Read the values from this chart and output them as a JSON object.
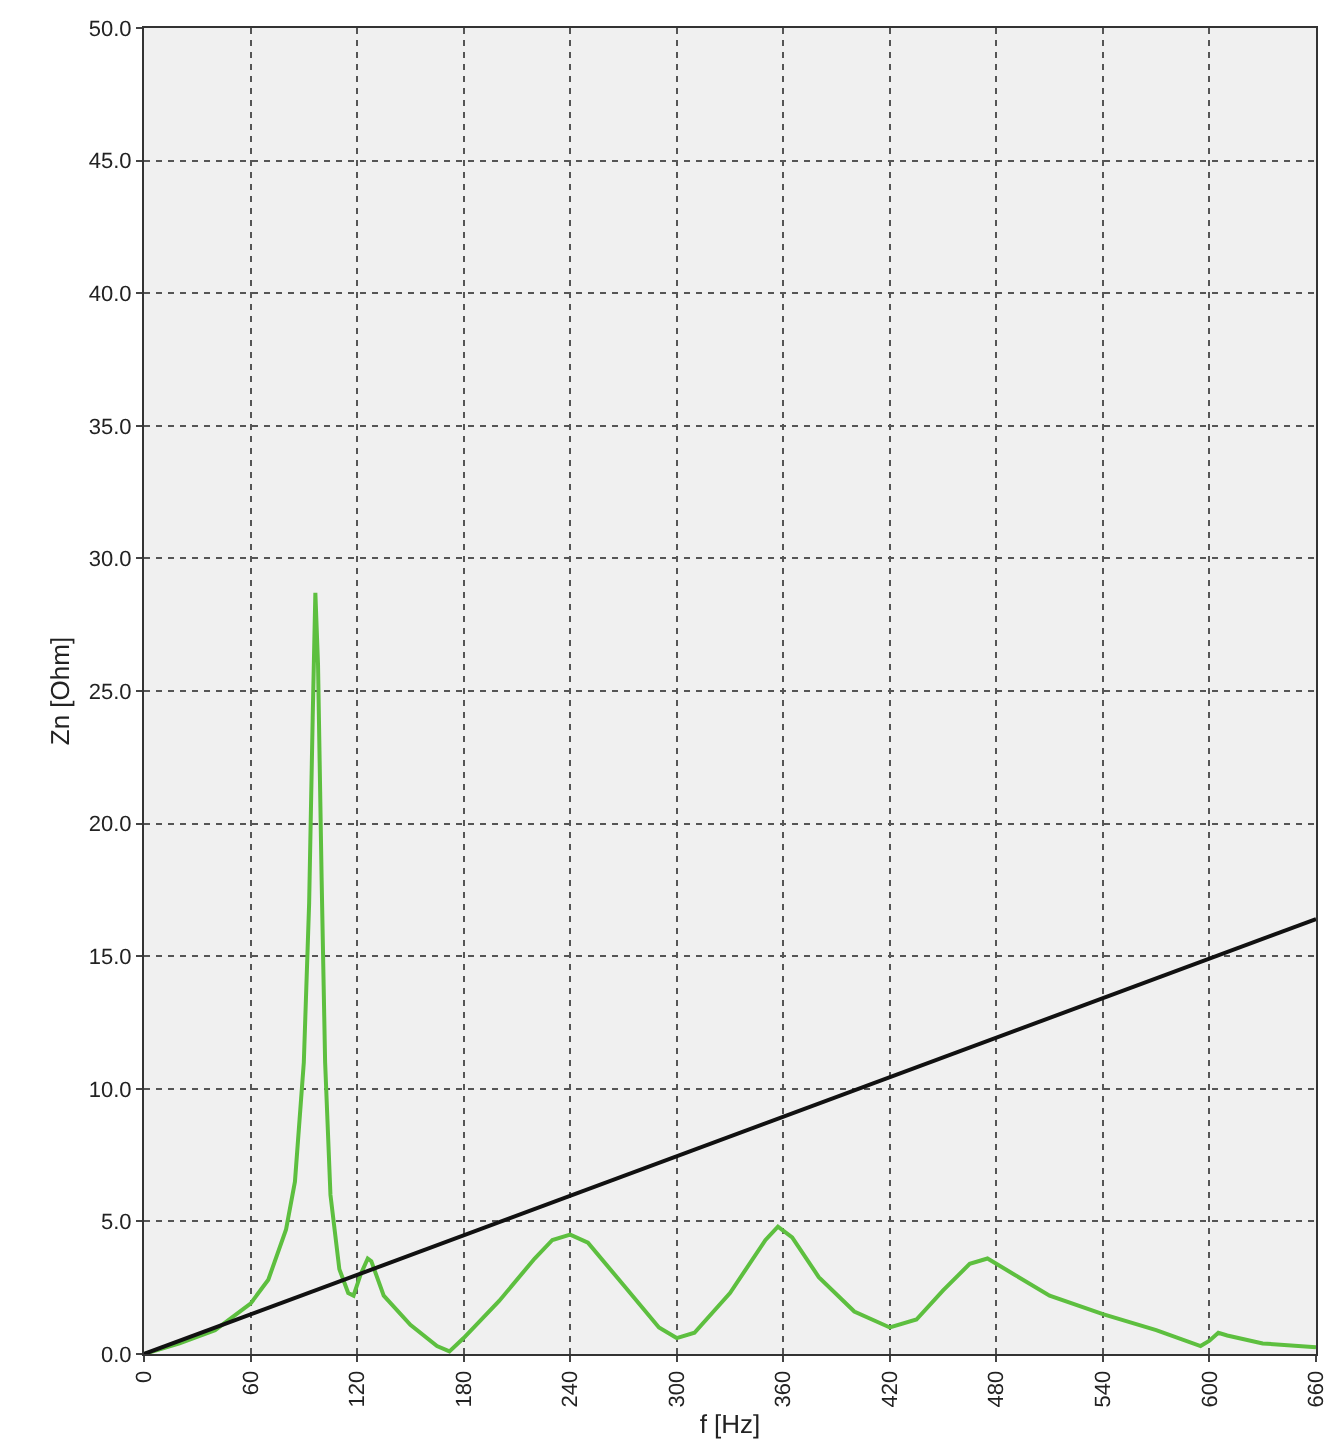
{
  "chart_data": {
    "type": "line",
    "xlabel": "f [Hz]",
    "ylabel": "Zn [Ohm]",
    "xlim": [
      0,
      660
    ],
    "xticks": [
      0,
      60,
      120,
      180,
      240,
      300,
      360,
      420,
      480,
      540,
      600,
      660
    ],
    "ylim": [
      0,
      50
    ],
    "yticks": [
      {
        "value": 0,
        "label": "0.0"
      },
      {
        "value": 5,
        "label": "5.0"
      },
      {
        "value": 10,
        "label": "10.0"
      },
      {
        "value": 15,
        "label": "15.0"
      },
      {
        "value": 20,
        "label": "20.0"
      },
      {
        "value": 25,
        "label": "25.0"
      },
      {
        "value": 30,
        "label": "30.0"
      },
      {
        "value": 35,
        "label": "35.0"
      },
      {
        "value": 40,
        "label": "40.0"
      },
      {
        "value": 45,
        "label": "45.0"
      },
      {
        "value": 50,
        "label": "50.0"
      }
    ],
    "grid": true,
    "marker": "none",
    "line_style": "solid",
    "series": [
      {
        "color": "#5dbf3f",
        "x": [
          0,
          20,
          40,
          60,
          70,
          80,
          85,
          90,
          93,
          95,
          96.5,
          98,
          100,
          102,
          105,
          110,
          115,
          118,
          122,
          126,
          128,
          135,
          150,
          165,
          172,
          180,
          200,
          220,
          230,
          240,
          250,
          270,
          290,
          300,
          310,
          330,
          350,
          357,
          365,
          380,
          400,
          420,
          435,
          450,
          465,
          475,
          490,
          510,
          540,
          570,
          595,
          600,
          605,
          610,
          630,
          660
        ],
        "values": [
          0,
          0.4,
          0.9,
          1.9,
          2.8,
          4.7,
          6.5,
          11,
          17,
          24,
          28.7,
          26,
          18,
          11,
          6,
          3.2,
          2.3,
          2.2,
          3,
          3.6,
          3.5,
          2.2,
          1.1,
          0.3,
          0.1,
          0.6,
          2.0,
          3.6,
          4.3,
          4.5,
          4.2,
          2.6,
          1.0,
          0.6,
          0.8,
          2.3,
          4.3,
          4.8,
          4.4,
          2.9,
          1.6,
          1.0,
          1.3,
          2.4,
          3.4,
          3.6,
          3.0,
          2.2,
          1.5,
          0.9,
          0.3,
          0.5,
          0.8,
          0.7,
          0.4,
          0.25
        ]
      },
      {
        "color": "#111111",
        "x": [
          0,
          660
        ],
        "values": [
          0,
          16.4
        ]
      }
    ]
  }
}
